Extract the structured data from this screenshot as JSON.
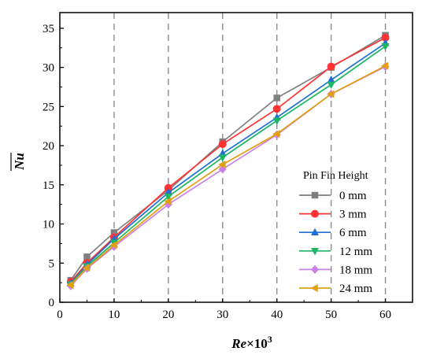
{
  "chart_data": {
    "type": "line",
    "title": "",
    "ylabel": "Nu",
    "xlabel_parts": {
      "main": "Re",
      "times": "×10",
      "exp": "3"
    },
    "xlim": [
      0,
      65
    ],
    "ylim": [
      0,
      37
    ],
    "xticks": [
      0,
      10,
      20,
      30,
      40,
      50,
      60
    ],
    "yticks": [
      0,
      5,
      10,
      15,
      20,
      25,
      30,
      35
    ],
    "x": [
      2,
      5,
      10,
      20,
      30,
      40,
      50,
      60
    ],
    "grid": "vertical dashed lines at x = 10, 20, 30, 40, 50, 60",
    "legend_title": "Pin Fin Height",
    "legend_position": "lower-right",
    "series": [
      {
        "name": "0 mm",
        "color": "#808080",
        "marker": "square",
        "values": [
          2.8,
          5.8,
          8.9,
          14.3,
          20.5,
          26.1,
          30.0,
          34.1
        ]
      },
      {
        "name": "3 mm",
        "color": "#ff3333",
        "marker": "circle",
        "values": [
          2.6,
          5.0,
          8.3,
          14.6,
          20.2,
          24.7,
          30.1,
          33.8
        ]
      },
      {
        "name": "6 mm",
        "color": "#1f6fd6",
        "marker": "triangle-up",
        "values": [
          2.4,
          4.8,
          8.1,
          14.0,
          19.0,
          23.6,
          28.4,
          33.1
        ]
      },
      {
        "name": "12 mm",
        "color": "#1bb566",
        "marker": "triangle-down",
        "values": [
          2.3,
          4.6,
          7.6,
          13.5,
          18.5,
          23.2,
          27.8,
          32.7
        ]
      },
      {
        "name": "18 mm",
        "color": "#cc80e6",
        "marker": "diamond",
        "values": [
          2.1,
          4.3,
          7.1,
          12.5,
          17.0,
          21.4,
          26.6,
          30.1
        ]
      },
      {
        "name": "24 mm",
        "color": "#e0a010",
        "marker": "triangle-left",
        "values": [
          2.2,
          4.4,
          7.3,
          12.9,
          17.6,
          21.5,
          26.6,
          30.2
        ]
      }
    ]
  }
}
